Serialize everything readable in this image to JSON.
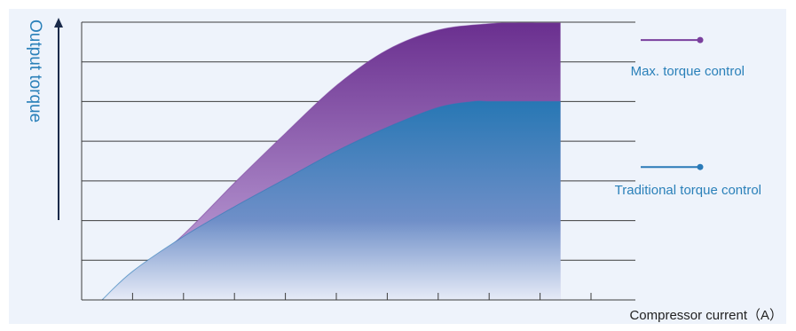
{
  "chart_data": {
    "type": "area",
    "xlabel": "Compressor current（A）",
    "ylabel": "Output torque",
    "xlim": [
      0,
      10
    ],
    "ylim": [
      0,
      7
    ],
    "grid": true,
    "legend_position": "right",
    "series": [
      {
        "name": "Max. torque control",
        "color": "#7a3f9d",
        "x": [
          0.4,
          1,
          2,
          3,
          4,
          5,
          6,
          7,
          8,
          8.5,
          9,
          9.4
        ],
        "values": [
          0,
          0.55,
          1.65,
          2.95,
          4.2,
          5.4,
          6.3,
          6.8,
          6.96,
          6.98,
          6.98,
          6.98
        ]
      },
      {
        "name": "Traditional torque control",
        "color": "#2a7ab8",
        "x": [
          0.4,
          1,
          2,
          3,
          4,
          5,
          6,
          7,
          7.7,
          8,
          9,
          9.4
        ],
        "values": [
          0,
          0.72,
          1.6,
          2.35,
          3.05,
          3.75,
          4.35,
          4.85,
          5,
          5,
          5,
          5
        ]
      }
    ]
  },
  "colors": {
    "panel_bg": "#eef3fb",
    "grid": "#3c3c3c",
    "accent_blue": "#2a80b9",
    "accent_purple": "#7a3f9d"
  }
}
